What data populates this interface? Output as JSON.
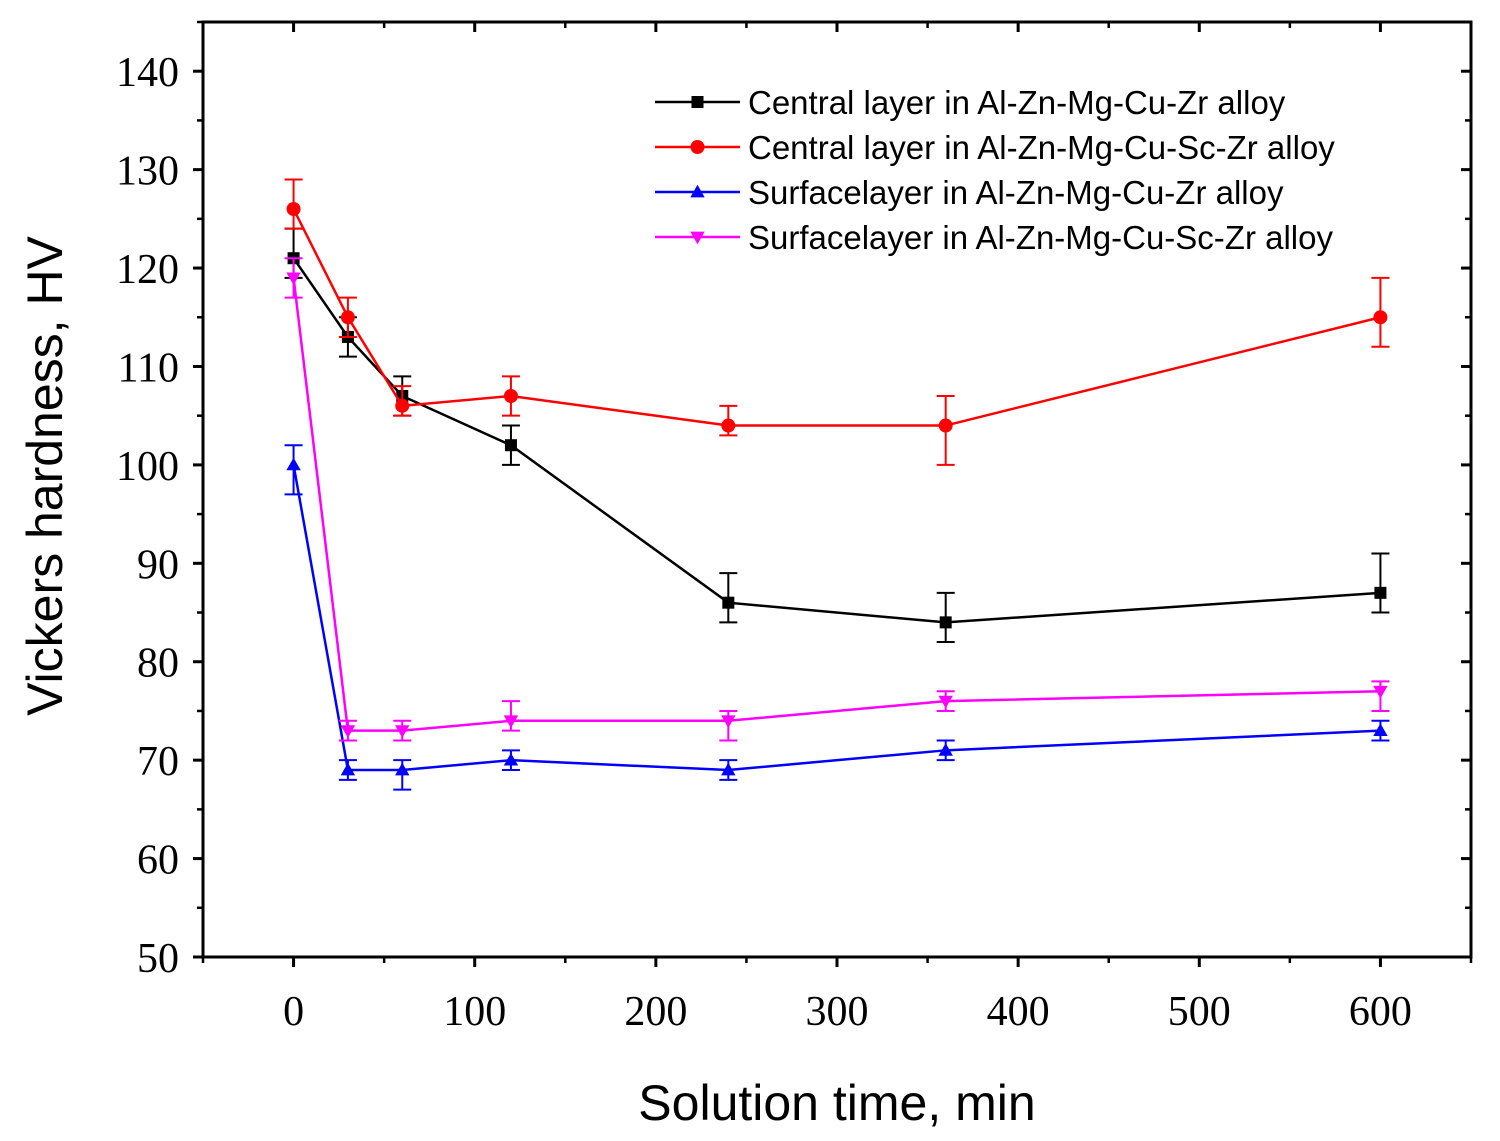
{
  "chart_data": {
    "type": "line",
    "title": "",
    "xlabel": "Solution time, min",
    "ylabel": "Vickers hardness, HV",
    "xlim": [
      -50,
      650
    ],
    "ylim": [
      50,
      145
    ],
    "x_ticks": [
      "0",
      "100",
      "200",
      "300",
      "400",
      "500",
      "600"
    ],
    "y_ticks": [
      "50",
      "60",
      "70",
      "80",
      "90",
      "100",
      "110",
      "120",
      "130",
      "140"
    ],
    "grid": false,
    "legend_position": "top-right",
    "x": [
      0,
      30,
      60,
      120,
      240,
      360,
      600
    ],
    "series": [
      {
        "name": "Central layer in Al-Zn-Mg-Cu-Zr alloy",
        "color": "#000000",
        "marker": "square",
        "values": [
          121,
          113,
          107,
          102,
          86,
          84,
          87
        ],
        "err_upper": [
          3,
          2,
          2,
          2,
          3,
          3,
          4
        ],
        "err_lower": [
          2,
          2,
          2,
          2,
          2,
          2,
          2
        ]
      },
      {
        "name": "Central layer in Al-Zn-Mg-Cu-Sc-Zr alloy",
        "color": "#ff0000",
        "marker": "circle",
        "values": [
          126,
          115,
          106,
          107,
          104,
          104,
          115
        ],
        "err_upper": [
          3,
          2,
          2,
          2,
          2,
          3,
          4
        ],
        "err_lower": [
          2,
          2,
          1,
          2,
          1,
          4,
          3
        ]
      },
      {
        "name": "Surfacelayer in Al-Zn-Mg-Cu-Zr alloy",
        "color": "#0000ff",
        "marker": "triangle-up",
        "values": [
          100,
          69,
          69,
          70,
          69,
          71,
          73
        ],
        "err_upper": [
          2,
          1,
          1,
          1,
          1,
          1,
          1
        ],
        "err_lower": [
          3,
          1,
          2,
          1,
          1,
          1,
          1
        ]
      },
      {
        "name": "Surfacelayer in Al-Zn-Mg-Cu-Sc-Zr alloy",
        "color": "#ff00ff",
        "marker": "triangle-down",
        "values": [
          119,
          73,
          73,
          74,
          74,
          76,
          77
        ],
        "err_upper": [
          2,
          1,
          1,
          2,
          1,
          1,
          1
        ],
        "err_lower": [
          2,
          1,
          1,
          1,
          2,
          1,
          2
        ]
      }
    ]
  }
}
